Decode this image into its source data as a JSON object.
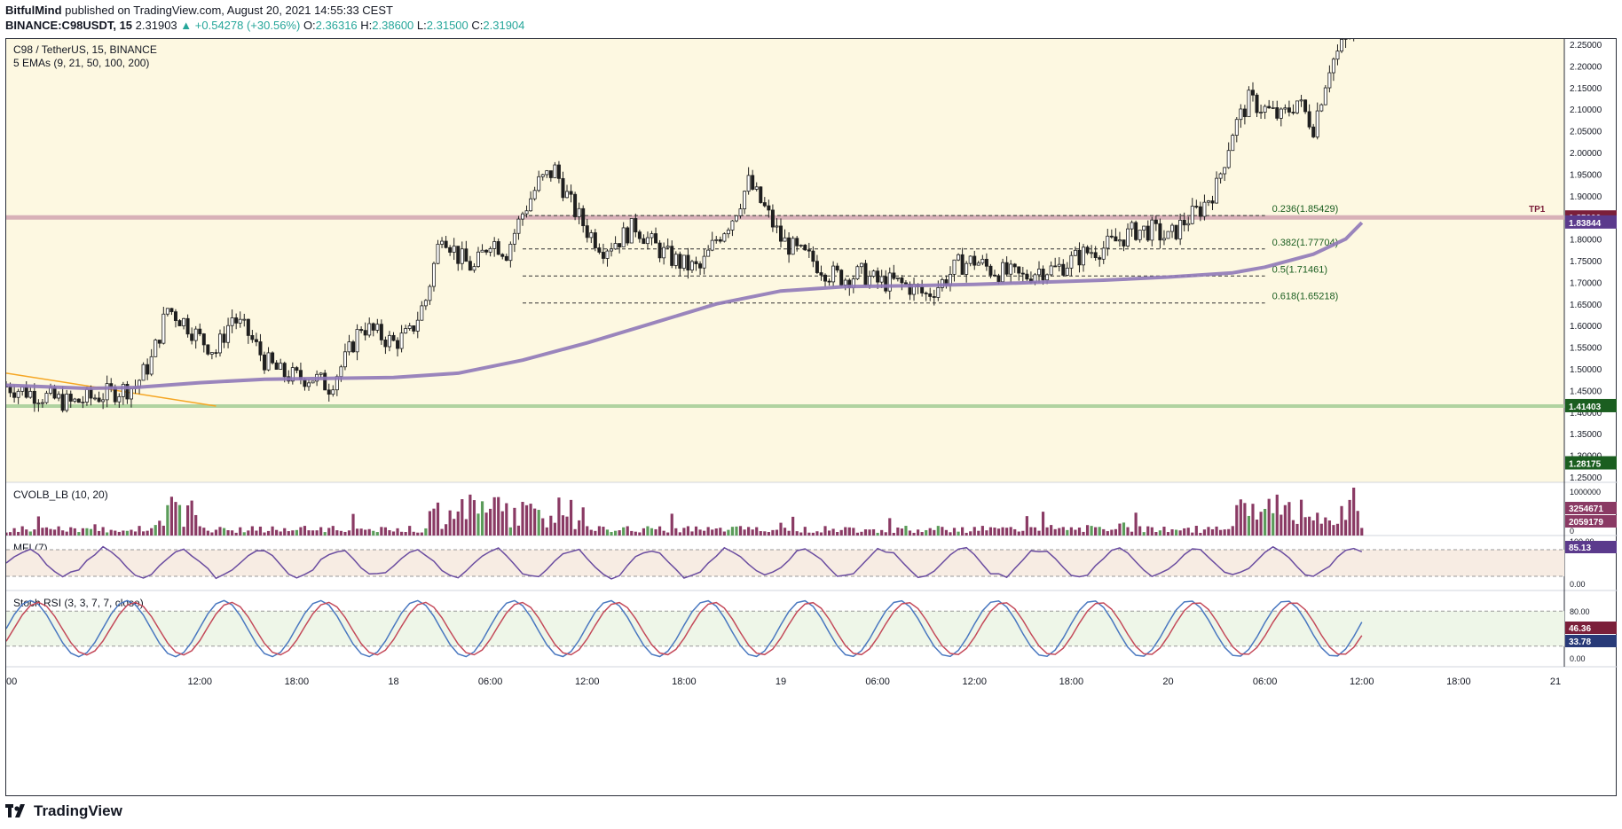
{
  "header": {
    "author": "BitfulMind",
    "published_text": "published on TradingView.com, August 20, 2021 14:55:33 CEST",
    "symbol_line": "BINANCE:C98USDT, 15",
    "last": "2.31903",
    "change": "▲ +0.54278 (+30.56%)",
    "o_label": "O:",
    "o_value": "2.36316",
    "h_label": "H:",
    "h_value": "2.38600",
    "l_label": "L:",
    "l_value": "2.31500",
    "c_label": "C:",
    "c_value": "2.31904"
  },
  "legend": {
    "symbol": "C98 / TetherUS, 15, BINANCE",
    "emas": "5 EMAs (9, 21, 50, 100, 200)",
    "volume": "CVOLB_LB (10, 20)",
    "mfi": "MFI (7)",
    "stoch": "Stoch RSI (3, 3, 7, 7, close)"
  },
  "colors": {
    "bg": "#fdf8e1",
    "candle": "#1f1f1f",
    "ema": "#8f78b8",
    "tp_line": "#d4aab4",
    "green_line": "#a8cf9a",
    "trend": "#f5a623",
    "fib": "#1b5e20",
    "vol": "#8a3a64",
    "mfi_line": "#6a4ca0",
    "stoch_k": "#4a78c0",
    "stoch_d": "#c44a5a"
  },
  "chart_data": {
    "type": "candlestick",
    "title": "C98 / TetherUS, 15, BINANCE",
    "ylim": [
      1.25,
      2.25
    ],
    "y_ticks": [
      "2.25000",
      "2.20000",
      "2.15000",
      "2.10000",
      "2.05000",
      "2.00000",
      "1.95000",
      "1.90000",
      "1.85000",
      "1.80000",
      "1.75000",
      "1.70000",
      "1.65000",
      "1.60000",
      "1.55000",
      "1.50000",
      "1.45000",
      "1.40000",
      "1.35000",
      "1.30000",
      "1.25000"
    ],
    "x_ticks": [
      {
        "label": "00",
        "t": 0
      },
      {
        "label": "12:00",
        "t": 12
      },
      {
        "label": "18:00",
        "t": 18
      },
      {
        "label": "18",
        "t": 24
      },
      {
        "label": "06:00",
        "t": 30
      },
      {
        "label": "12:00",
        "t": 36
      },
      {
        "label": "18:00",
        "t": 42
      },
      {
        "label": "19",
        "t": 48
      },
      {
        "label": "06:00",
        "t": 54
      },
      {
        "label": "12:00",
        "t": 60
      },
      {
        "label": "18:00",
        "t": 66
      },
      {
        "label": "20",
        "t": 72
      },
      {
        "label": "06:00",
        "t": 78
      },
      {
        "label": "12:00",
        "t": 84
      },
      {
        "label": "18:00",
        "t": 90
      },
      {
        "label": "21",
        "t": 96
      }
    ],
    "x_range": [
      0,
      90
    ],
    "candle_path": [
      [
        0,
        1.46
      ],
      [
        4,
        1.42
      ],
      [
        6,
        1.44
      ],
      [
        8,
        1.46
      ],
      [
        9,
        1.52
      ],
      [
        10,
        1.64
      ],
      [
        11,
        1.61
      ],
      [
        12,
        1.57
      ],
      [
        13,
        1.54
      ],
      [
        14,
        1.62
      ],
      [
        15,
        1.58
      ],
      [
        16,
        1.52
      ],
      [
        17,
        1.49
      ],
      [
        18,
        1.48
      ],
      [
        19,
        1.48
      ],
      [
        20,
        1.46
      ],
      [
        21,
        1.52
      ],
      [
        22,
        1.6
      ],
      [
        23,
        1.58
      ],
      [
        24,
        1.56
      ],
      [
        25,
        1.58
      ],
      [
        26,
        1.66
      ],
      [
        27,
        1.82
      ],
      [
        28,
        1.76
      ],
      [
        29,
        1.73
      ],
      [
        30,
        1.8
      ],
      [
        31,
        1.77
      ],
      [
        32,
        1.86
      ],
      [
        33,
        1.93
      ],
      [
        34,
        1.96
      ],
      [
        35,
        1.88
      ],
      [
        36,
        1.82
      ],
      [
        37,
        1.78
      ],
      [
        38,
        1.8
      ],
      [
        39,
        1.83
      ],
      [
        40,
        1.79
      ],
      [
        41,
        1.76
      ],
      [
        42,
        1.74
      ],
      [
        43,
        1.73
      ],
      [
        44,
        1.8
      ],
      [
        45,
        1.85
      ],
      [
        46,
        1.93
      ],
      [
        47,
        1.87
      ],
      [
        48,
        1.8
      ],
      [
        49,
        1.77
      ],
      [
        50,
        1.75
      ],
      [
        51,
        1.72
      ],
      [
        52,
        1.71
      ],
      [
        53,
        1.72
      ],
      [
        54,
        1.7
      ],
      [
        55,
        1.7
      ],
      [
        56,
        1.69
      ],
      [
        57,
        1.67
      ],
      [
        58,
        1.7
      ],
      [
        59,
        1.74
      ],
      [
        60,
        1.75
      ],
      [
        61,
        1.73
      ],
      [
        62,
        1.72
      ],
      [
        63,
        1.71
      ],
      [
        64,
        1.73
      ],
      [
        65,
        1.73
      ],
      [
        66,
        1.75
      ],
      [
        67,
        1.77
      ],
      [
        68,
        1.78
      ],
      [
        69,
        1.8
      ],
      [
        70,
        1.82
      ],
      [
        71,
        1.82
      ],
      [
        72,
        1.8
      ],
      [
        73,
        1.84
      ],
      [
        74,
        1.87
      ],
      [
        75,
        1.92
      ],
      [
        76,
        2.05
      ],
      [
        77,
        2.12
      ],
      [
        78,
        2.1
      ],
      [
        79,
        2.08
      ],
      [
        80,
        2.12
      ],
      [
        81,
        2.06
      ],
      [
        82,
        2.2
      ],
      [
        83,
        2.26
      ],
      [
        84,
        2.31
      ]
    ],
    "ema_path": [
      [
        0,
        1.462
      ],
      [
        5,
        1.455
      ],
      [
        8,
        1.457
      ],
      [
        12,
        1.468
      ],
      [
        16,
        1.476
      ],
      [
        20,
        1.478
      ],
      [
        24,
        1.48
      ],
      [
        28,
        1.49
      ],
      [
        32,
        1.52
      ],
      [
        36,
        1.56
      ],
      [
        40,
        1.605
      ],
      [
        44,
        1.65
      ],
      [
        48,
        1.68
      ],
      [
        52,
        1.69
      ],
      [
        56,
        1.692
      ],
      [
        60,
        1.695
      ],
      [
        64,
        1.7
      ],
      [
        68,
        1.705
      ],
      [
        72,
        1.712
      ],
      [
        76,
        1.722
      ],
      [
        78,
        1.735
      ],
      [
        81,
        1.765
      ],
      [
        83,
        1.8
      ],
      [
        84,
        1.838
      ]
    ],
    "trendline": {
      "from": [
        0,
        1.49
      ],
      "to": [
        13,
        1.414
      ]
    },
    "horizontal_levels": [
      {
        "name": "TP1",
        "value": 1.85,
        "label": "1.85000",
        "label_color": "#7b1f3a"
      },
      {
        "name": "support",
        "value": 1.41403,
        "label": "1.41403",
        "label_color": "#1b5e20"
      }
    ],
    "price_labels": [
      {
        "value": 1.83844,
        "label": "1.83844",
        "color": "#5b3a8c"
      },
      {
        "value": 1.28175,
        "label": "1.28175",
        "color": "#1b5e20"
      }
    ],
    "fib_levels": [
      {
        "ratio": "0.236(1.85429)",
        "value": 1.85429
      },
      {
        "ratio": "0.382(1.77704)",
        "value": 1.77704
      },
      {
        "ratio": "0.5(1.71461)",
        "value": 1.71461
      },
      {
        "ratio": "0.618(1.65218)",
        "value": 1.65218
      }
    ],
    "fib_x_range": [
      32,
      78
    ],
    "tp_label": "TP1",
    "volume": {
      "ticks": [
        "1000000",
        "0"
      ],
      "labels": [
        {
          "value": "3254671",
          "color": "#8a3a64"
        },
        {
          "value": "2059179",
          "color": "#8a3a64"
        }
      ]
    },
    "mfi": {
      "ticks": [
        "100.00",
        "0.00"
      ],
      "current": "85.13",
      "upper_band": 80,
      "lower_band": 20
    },
    "stoch_rsi": {
      "ticks": [
        "80.00",
        "0.00"
      ],
      "k_current": "46.36",
      "d_current": "33.78",
      "upper_band": 80,
      "lower_band": 20
    }
  },
  "footer": {
    "brand": "TradingView"
  }
}
